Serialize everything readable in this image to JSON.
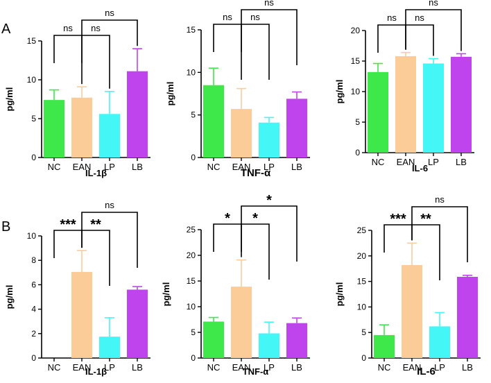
{
  "figure": {
    "panel_labels": [
      "A",
      "B"
    ]
  },
  "colors": {
    "NC": "#3ee84a",
    "EAN": "#fbcb98",
    "LP": "#44f6f6",
    "LB": "#c044ee"
  },
  "chart_data": [
    {
      "type": "bar",
      "panel": "A",
      "title": "IL-1β",
      "ylabel": "pg/ml",
      "ylim": [
        0,
        15
      ],
      "yticks": [
        0,
        5,
        10,
        15
      ],
      "categories": [
        "NC",
        "EAN",
        "LP",
        "LB"
      ],
      "values": [
        7.4,
        7.7,
        5.6,
        11.1
      ],
      "errors": [
        1.3,
        1.4,
        2.9,
        2.9
      ],
      "significance": [
        {
          "from": 0,
          "to": 1,
          "label": "ns"
        },
        {
          "from": 1,
          "to": 2,
          "label": "ns"
        },
        {
          "from": 1,
          "to": 3,
          "label": "ns"
        }
      ]
    },
    {
      "type": "bar",
      "panel": "A",
      "title": "TNF-α",
      "ylabel": "pg/ml",
      "ylim": [
        0,
        15
      ],
      "yticks": [
        0,
        5,
        10,
        15
      ],
      "categories": [
        "NC",
        "EAN",
        "LP",
        "LB"
      ],
      "values": [
        8.5,
        5.7,
        4.1,
        6.9
      ],
      "errors": [
        2.0,
        2.4,
        0.6,
        0.8
      ],
      "significance": [
        {
          "from": 0,
          "to": 1,
          "label": "ns"
        },
        {
          "from": 1,
          "to": 2,
          "label": "ns"
        },
        {
          "from": 1,
          "to": 3,
          "label": "ns"
        }
      ]
    },
    {
      "type": "bar",
      "panel": "A",
      "title": "IL-6",
      "ylabel": "pg/ml",
      "ylim": [
        0,
        20
      ],
      "yticks": [
        0,
        5,
        10,
        15,
        20
      ],
      "categories": [
        "NC",
        "EAN",
        "LP",
        "LB"
      ],
      "values": [
        13.2,
        15.8,
        14.6,
        15.7
      ],
      "errors": [
        1.4,
        0.6,
        0.8,
        0.5
      ],
      "significance": [
        {
          "from": 0,
          "to": 1,
          "label": "ns"
        },
        {
          "from": 1,
          "to": 2,
          "label": "ns"
        },
        {
          "from": 1,
          "to": 3,
          "label": "ns"
        }
      ]
    },
    {
      "type": "bar",
      "panel": "B",
      "title": "IL-1β",
      "ylabel": "pg/ml",
      "ylim": [
        0,
        10
      ],
      "yticks": [
        0,
        2,
        4,
        6,
        8,
        10
      ],
      "categories": [
        "NC",
        "EAN",
        "LP",
        "LB"
      ],
      "values": [
        0,
        7.05,
        1.75,
        5.6
      ],
      "errors": [
        0,
        1.75,
        1.55,
        0.25
      ],
      "significance": [
        {
          "from": 0,
          "to": 1,
          "label": "***"
        },
        {
          "from": 1,
          "to": 2,
          "label": "**"
        },
        {
          "from": 1,
          "to": 3,
          "label": "ns"
        }
      ]
    },
    {
      "type": "bar",
      "panel": "B",
      "title": "TNF-α",
      "ylabel": "pg/ml",
      "ylim": [
        0,
        25
      ],
      "yticks": [
        0,
        5,
        10,
        15,
        20,
        25
      ],
      "categories": [
        "NC",
        "EAN",
        "LP",
        "LB"
      ],
      "values": [
        7.1,
        13.9,
        4.8,
        6.8
      ],
      "errors": [
        0.8,
        5.2,
        2.2,
        1.0
      ],
      "significance": [
        {
          "from": 0,
          "to": 1,
          "label": "*"
        },
        {
          "from": 1,
          "to": 2,
          "label": "*"
        },
        {
          "from": 1,
          "to": 3,
          "label": "*"
        }
      ]
    },
    {
      "type": "bar",
      "panel": "B",
      "title": "IL-6",
      "ylabel": "pg/ml",
      "ylim": [
        0,
        25
      ],
      "yticks": [
        0,
        5,
        10,
        15,
        20,
        25
      ],
      "categories": [
        "NC",
        "EAN",
        "LP",
        "LB"
      ],
      "values": [
        4.5,
        18.2,
        6.2,
        15.9
      ],
      "errors": [
        2.0,
        4.3,
        2.7,
        0.3
      ],
      "significance": [
        {
          "from": 0,
          "to": 1,
          "label": "***"
        },
        {
          "from": 1,
          "to": 2,
          "label": "**"
        },
        {
          "from": 1,
          "to": 3,
          "label": "ns"
        }
      ]
    }
  ]
}
